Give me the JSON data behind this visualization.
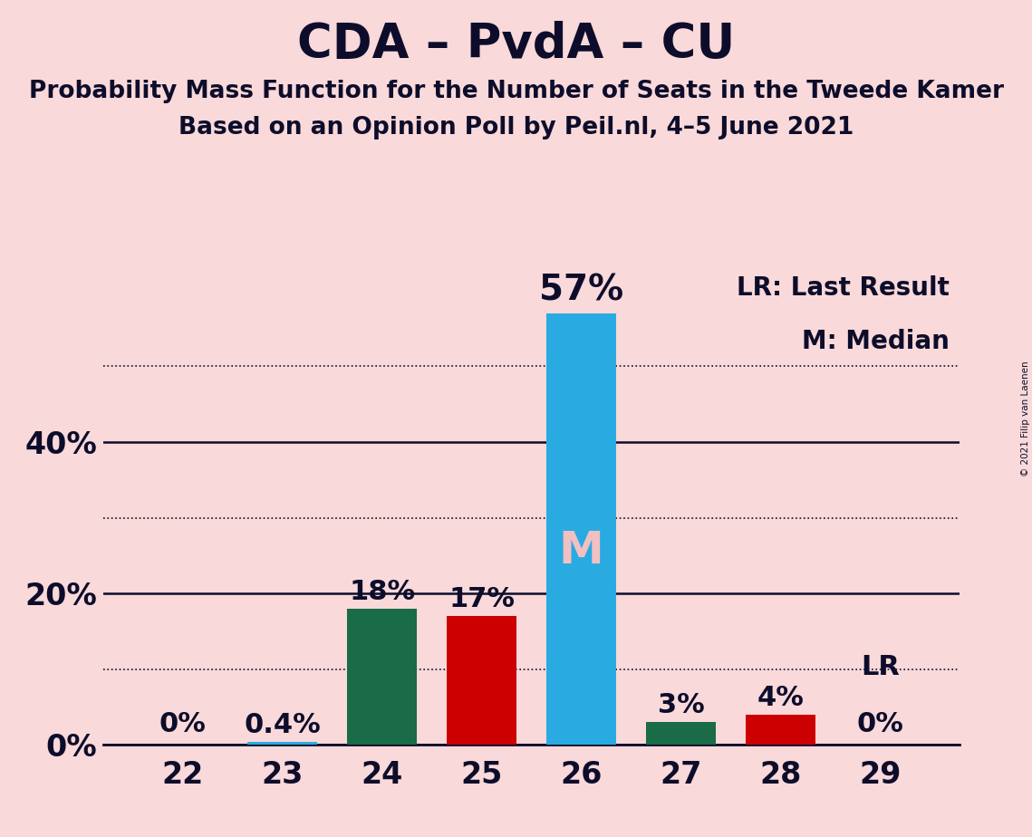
{
  "title": "CDA – PvdA – CU",
  "subtitle1": "Probability Mass Function for the Number of Seats in the Tweede Kamer",
  "subtitle2": "Based on an Opinion Poll by Peil.nl, 4–5 June 2021",
  "copyright": "© 2021 Filip van Laenen",
  "seats": [
    22,
    23,
    24,
    25,
    26,
    27,
    28,
    29
  ],
  "values": [
    0.0,
    0.4,
    18.0,
    17.0,
    57.0,
    3.0,
    4.0,
    0.0
  ],
  "bar_colors": [
    "#29ABE2",
    "#29ABE2",
    "#1A6B47",
    "#CC0000",
    "#29ABE2",
    "#1A6B47",
    "#CC0000",
    "#29ABE2"
  ],
  "bar_labels": [
    "0%",
    "0.4%",
    "18%",
    "17%",
    "57%",
    "3%",
    "4%",
    "0%"
  ],
  "median_bar_index": 4,
  "lr_bar_index": 7,
  "background_color": "#F9D9D9",
  "text_color": "#0D0D2B",
  "m_label_color": "#F2C0C0",
  "legend_text1": "LR: Last Result",
  "legend_text2": "M: Median",
  "ylim_max": 63,
  "solid_gridlines": [
    0,
    20,
    40
  ],
  "dotted_gridlines": [
    10,
    30,
    50
  ],
  "ytick_labels": [
    "0%",
    "20%",
    "40%"
  ],
  "ytick_positions": [
    0,
    20,
    40
  ],
  "title_fontsize": 38,
  "subtitle_fontsize": 19,
  "label_fontsize": 22,
  "tick_fontsize": 24,
  "legend_fontsize": 20,
  "m_fontsize": 36,
  "lr_fontsize": 22
}
